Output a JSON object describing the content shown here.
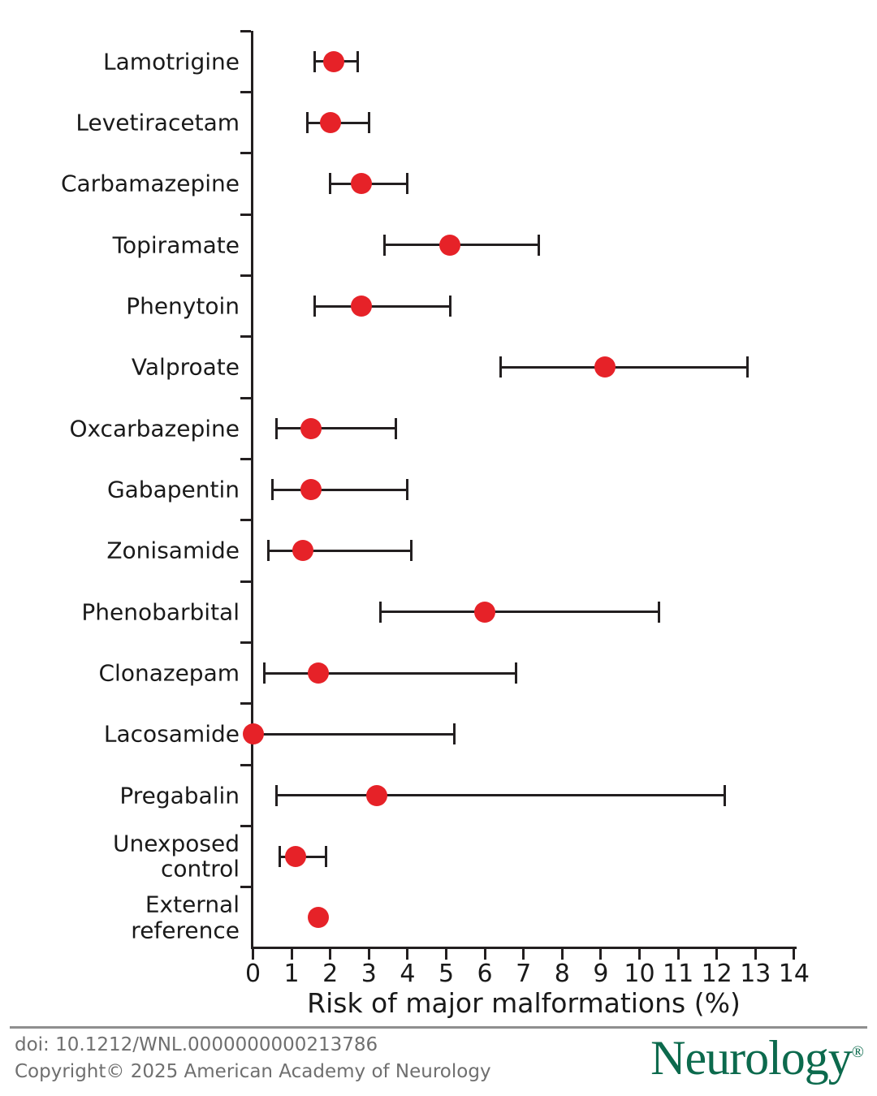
{
  "chart_data": {
    "type": "scatter",
    "variant": "forest-dot-with-ci",
    "title": "",
    "xlabel": "Risk of major malformations (%)",
    "ylabel": "",
    "xlim": [
      0,
      14
    ],
    "xticks": [
      "0",
      "1",
      "2",
      "3",
      "4",
      "5",
      "6",
      "7",
      "8",
      "9",
      "10",
      "11",
      "12",
      "13",
      "14"
    ],
    "grid": false,
    "legend": null,
    "marker_color": "#e62228",
    "line_color": "#231f20",
    "points": [
      {
        "label": "Lamotrigine",
        "display": "Lamotrigine",
        "value": 2.1,
        "ci_low": 1.6,
        "ci_high": 2.7
      },
      {
        "label": "Levetiracetam",
        "display": "Levetiracetam",
        "value": 2.0,
        "ci_low": 1.4,
        "ci_high": 3.0
      },
      {
        "label": "Carbamazepine",
        "display": "Carbamazepine",
        "value": 2.8,
        "ci_low": 2.0,
        "ci_high": 4.0
      },
      {
        "label": "Topiramate",
        "display": "Topiramate",
        "value": 5.1,
        "ci_low": 3.4,
        "ci_high": 7.4
      },
      {
        "label": "Phenytoin",
        "display": "Phenytoin",
        "value": 2.8,
        "ci_low": 1.6,
        "ci_high": 5.1
      },
      {
        "label": "Valproate",
        "display": "Valproate",
        "value": 9.1,
        "ci_low": 6.4,
        "ci_high": 12.8
      },
      {
        "label": "Oxcarbazepine",
        "display": "Oxcarbazepine",
        "value": 1.5,
        "ci_low": 0.6,
        "ci_high": 3.7
      },
      {
        "label": "Gabapentin",
        "display": "Gabapentin",
        "value": 1.5,
        "ci_low": 0.5,
        "ci_high": 4.0
      },
      {
        "label": "Zonisamide",
        "display": "Zonisamide",
        "value": 1.3,
        "ci_low": 0.4,
        "ci_high": 4.1
      },
      {
        "label": "Phenobarbital",
        "display": "Phenobarbital",
        "value": 6.0,
        "ci_low": 3.3,
        "ci_high": 10.5
      },
      {
        "label": "Clonazepam",
        "display": "Clonazepam",
        "value": 1.7,
        "ci_low": 0.3,
        "ci_high": 6.8
      },
      {
        "label": "Lacosamide",
        "display": "Lacosamide",
        "value": 0.0,
        "ci_low": 0.0,
        "ci_high": 5.2
      },
      {
        "label": "Pregabalin",
        "display": "Pregabalin",
        "value": 3.2,
        "ci_low": 0.6,
        "ci_high": 12.2
      },
      {
        "label": "Unexposed control",
        "display": "Unexposed\ncontrol",
        "value": 1.1,
        "ci_low": 0.7,
        "ci_high": 1.9
      },
      {
        "label": "External reference",
        "display": "External\nreference",
        "value": 1.7,
        "ci_low": null,
        "ci_high": null
      }
    ]
  },
  "footer": {
    "doi": "doi: 10.1212/WNL.0000000000213786",
    "copyright": "Copyright© 2025 American Academy of Neurology",
    "journal_name": "Neurology",
    "registered_mark": "®",
    "logo_color": "#0c6a4d"
  }
}
